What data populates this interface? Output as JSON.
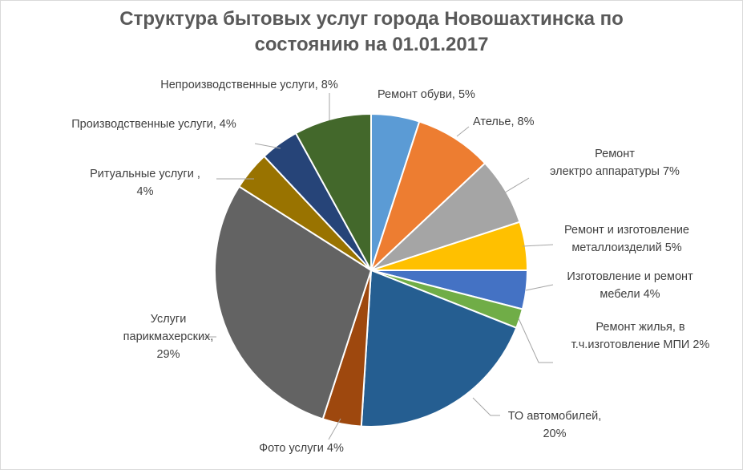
{
  "title": {
    "line1": "Структура бытовых услуг города Новошахтинска по",
    "line2": "состоянию на 01.01.2017"
  },
  "chart_data": {
    "type": "pie",
    "title": "Структура бытовых услуг города Новошахтинска по состоянию на 01.01.2017",
    "unit": "%",
    "legend": "none",
    "slices": [
      {
        "label": "Ремонт обуви",
        "value": 5,
        "color": "#5b9bd5",
        "text": [
          "Ремонт обуви, 5%"
        ]
      },
      {
        "label": "Ателье",
        "value": 8,
        "color": "#ed7d31",
        "text": [
          "Ателье, 8%"
        ]
      },
      {
        "label": "Ремонт электро аппаратуры",
        "value": 7,
        "color": "#a5a5a5",
        "text": [
          "Ремонт",
          "электро аппаратуры 7%"
        ]
      },
      {
        "label": "Ремонт и изготовление металлоизделий",
        "value": 5,
        "color": "#ffc000",
        "text": [
          "Ремонт и изготовление",
          "металлоизделий 5%"
        ]
      },
      {
        "label": "Изготовление и ремонт мебели",
        "value": 4,
        "color": "#4472c4",
        "text": [
          "Изготовление и ремонт",
          "мебели 4%"
        ]
      },
      {
        "label": "Ремонт жилья, в т.ч.изготовление МПИ",
        "value": 2,
        "color": "#70ad47",
        "text": [
          "Ремонт жилья, в",
          "т.ч.изготовление МПИ 2%"
        ]
      },
      {
        "label": "ТО автомобилей",
        "value": 20,
        "color": "#255e91",
        "text": [
          "ТО автомобилей,",
          "20%"
        ]
      },
      {
        "label": "Фото услуги",
        "value": 4,
        "color": "#9e480e",
        "text": [
          "Фото услуги 4%"
        ]
      },
      {
        "label": "Услуги парикмахерских",
        "value": 29,
        "color": "#636363",
        "text": [
          "Услуги",
          "парикмахерских,",
          "29%"
        ]
      },
      {
        "label": "Ритуальные услуги",
        "value": 4,
        "color": "#997300",
        "text": [
          "Ритуальные услуги ,",
          "4%"
        ]
      },
      {
        "label": "Производственные услуги",
        "value": 4,
        "color": "#264478",
        "text": [
          "Производственные услуги, 4%"
        ]
      },
      {
        "label": "Непроизводственные услуги",
        "value": 8,
        "color": "#43682b",
        "text": [
          "Непроизводственные услуги, 8%"
        ]
      }
    ]
  }
}
